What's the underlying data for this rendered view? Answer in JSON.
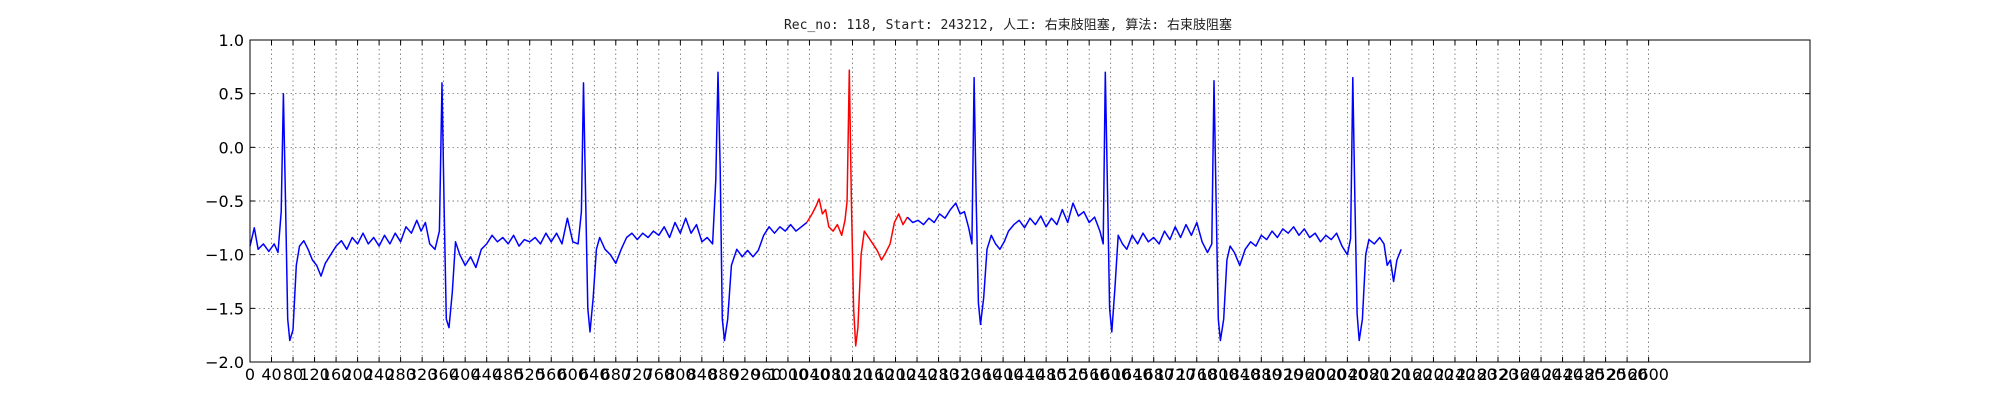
{
  "chart_data": {
    "type": "line",
    "title": "Rec_no: 118, Start: 243212, 人工: 右束肢阻塞, 算法: 右束肢阻塞",
    "xlabel": "",
    "ylabel": "",
    "xlim": [
      0,
      2900
    ],
    "ylim": [
      -2.0,
      1.0
    ],
    "grid": true,
    "y_ticks": [
      1.0,
      0.5,
      0.0,
      -0.5,
      -1.0,
      -1.5,
      -2.0
    ],
    "y_tick_labels": [
      "1.0",
      "0.5",
      "0.0",
      "−0.5",
      "−1.0",
      "−1.5",
      "−2.0"
    ],
    "x_ticks": [
      0,
      40,
      80,
      120,
      160,
      200,
      240,
      280,
      320,
      360,
      400,
      440,
      480,
      520,
      560,
      600,
      640,
      680,
      720,
      760,
      800,
      840,
      880,
      920,
      960,
      1000,
      1040,
      1080,
      1120,
      1160,
      1200,
      1240,
      1280,
      1320,
      1360,
      1400,
      1440,
      1480,
      1520,
      1560,
      1600,
      1640,
      1680,
      1720,
      1760,
      1800,
      1840,
      1880,
      1920,
      1960,
      2000,
      2040,
      2080,
      2120,
      2160,
      2200,
      2240,
      2280,
      2320,
      2360,
      2400,
      2440,
      2480,
      2520,
      2560,
      2600
    ],
    "x_tick_labels": [
      "0",
      "40",
      "80",
      "120",
      "160",
      "200",
      "240",
      "280",
      "320",
      "360",
      "400",
      "440",
      "480",
      "520",
      "560",
      "600",
      "640",
      "680",
      "720",
      "760",
      "800",
      "840",
      "880",
      "920",
      "960",
      "1000",
      "1040",
      "1080",
      "1120",
      "1160",
      "1200",
      "1240",
      "1280",
      "1320",
      "1360",
      "1400",
      "1440",
      "1480",
      "1520",
      "1560",
      "1600",
      "1640",
      "1680",
      "1720",
      "1760",
      "1800",
      "1840",
      "1880",
      "1920",
      "1960",
      "2000",
      "2040",
      "2080",
      "2120",
      "2160",
      "2200",
      "2240",
      "2280",
      "2320",
      "2360",
      "2400",
      "2440",
      "2480",
      "2520",
      "2560",
      "2600"
    ],
    "series": [
      {
        "color": "#0000ff",
        "points": [
          [
            0,
            -0.92
          ],
          [
            8,
            -0.75
          ],
          [
            15,
            -0.95
          ],
          [
            25,
            -0.9
          ],
          [
            35,
            -0.97
          ],
          [
            45,
            -0.9
          ],
          [
            52,
            -0.98
          ],
          [
            58,
            -0.6
          ],
          [
            62,
            0.5
          ],
          [
            66,
            -0.5
          ],
          [
            70,
            -1.6
          ],
          [
            74,
            -1.8
          ],
          [
            80,
            -1.7
          ],
          [
            86,
            -1.1
          ],
          [
            92,
            -0.92
          ],
          [
            100,
            -0.87
          ],
          [
            108,
            -0.95
          ],
          [
            116,
            -1.05
          ],
          [
            124,
            -1.1
          ],
          [
            132,
            -1.2
          ],
          [
            140,
            -1.08
          ],
          [
            150,
            -1.0
          ],
          [
            160,
            -0.92
          ],
          [
            170,
            -0.87
          ],
          [
            180,
            -0.95
          ],
          [
            190,
            -0.84
          ],
          [
            200,
            -0.9
          ],
          [
            210,
            -0.8
          ],
          [
            220,
            -0.9
          ],
          [
            230,
            -0.84
          ],
          [
            240,
            -0.92
          ],
          [
            250,
            -0.82
          ],
          [
            260,
            -0.9
          ],
          [
            270,
            -0.8
          ],
          [
            280,
            -0.88
          ],
          [
            290,
            -0.74
          ],
          [
            300,
            -0.8
          ],
          [
            310,
            -0.68
          ],
          [
            318,
            -0.78
          ],
          [
            326,
            -0.7
          ],
          [
            334,
            -0.9
          ],
          [
            344,
            -0.95
          ],
          [
            352,
            -0.78
          ],
          [
            357,
            0.6
          ],
          [
            361,
            -0.6
          ],
          [
            365,
            -1.6
          ],
          [
            370,
            -1.68
          ],
          [
            376,
            -1.35
          ],
          [
            382,
            -0.88
          ],
          [
            390,
            -1.0
          ],
          [
            400,
            -1.1
          ],
          [
            410,
            -1.02
          ],
          [
            420,
            -1.12
          ],
          [
            430,
            -0.95
          ],
          [
            440,
            -0.9
          ],
          [
            450,
            -0.82
          ],
          [
            460,
            -0.88
          ],
          [
            470,
            -0.84
          ],
          [
            480,
            -0.9
          ],
          [
            490,
            -0.82
          ],
          [
            500,
            -0.92
          ],
          [
            510,
            -0.86
          ],
          [
            520,
            -0.88
          ],
          [
            530,
            -0.84
          ],
          [
            540,
            -0.9
          ],
          [
            550,
            -0.8
          ],
          [
            560,
            -0.88
          ],
          [
            570,
            -0.8
          ],
          [
            580,
            -0.9
          ],
          [
            590,
            -0.66
          ],
          [
            600,
            -0.88
          ],
          [
            610,
            -0.9
          ],
          [
            616,
            -0.6
          ],
          [
            620,
            0.6
          ],
          [
            624,
            -0.5
          ],
          [
            628,
            -1.5
          ],
          [
            632,
            -1.72
          ],
          [
            638,
            -1.4
          ],
          [
            644,
            -0.95
          ],
          [
            650,
            -0.84
          ],
          [
            660,
            -0.95
          ],
          [
            670,
            -1.0
          ],
          [
            680,
            -1.08
          ],
          [
            690,
            -0.95
          ],
          [
            700,
            -0.84
          ],
          [
            710,
            -0.8
          ],
          [
            720,
            -0.86
          ],
          [
            730,
            -0.8
          ],
          [
            740,
            -0.84
          ],
          [
            750,
            -0.78
          ],
          [
            760,
            -0.82
          ],
          [
            770,
            -0.74
          ],
          [
            780,
            -0.84
          ],
          [
            790,
            -0.7
          ],
          [
            800,
            -0.8
          ],
          [
            810,
            -0.66
          ],
          [
            820,
            -0.8
          ],
          [
            830,
            -0.72
          ],
          [
            840,
            -0.88
          ],
          [
            850,
            -0.84
          ],
          [
            860,
            -0.9
          ],
          [
            866,
            -0.3
          ],
          [
            870,
            0.7
          ],
          [
            874,
            -0.2
          ],
          [
            878,
            -1.6
          ],
          [
            882,
            -1.8
          ],
          [
            888,
            -1.6
          ],
          [
            895,
            -1.1
          ],
          [
            905,
            -0.95
          ],
          [
            915,
            -1.02
          ],
          [
            925,
            -0.96
          ],
          [
            935,
            -1.02
          ],
          [
            945,
            -0.96
          ],
          [
            955,
            -0.82
          ],
          [
            965,
            -0.74
          ],
          [
            975,
            -0.8
          ],
          [
            985,
            -0.74
          ],
          [
            995,
            -0.78
          ],
          [
            1005,
            -0.72
          ],
          [
            1015,
            -0.78
          ],
          [
            1025,
            -0.74
          ],
          [
            1035,
            -0.7
          ]
        ]
      },
      {
        "color": "#ff0000",
        "points": [
          [
            1035,
            -0.7
          ],
          [
            1045,
            -0.62
          ],
          [
            1052,
            -0.55
          ],
          [
            1058,
            -0.48
          ],
          [
            1064,
            -0.62
          ],
          [
            1070,
            -0.58
          ],
          [
            1076,
            -0.74
          ],
          [
            1084,
            -0.78
          ],
          [
            1092,
            -0.72
          ],
          [
            1100,
            -0.82
          ],
          [
            1106,
            -0.68
          ],
          [
            1110,
            -0.5
          ],
          [
            1114,
            0.72
          ],
          [
            1118,
            -0.5
          ],
          [
            1122,
            -1.5
          ],
          [
            1126,
            -1.85
          ],
          [
            1130,
            -1.68
          ],
          [
            1136,
            -1.0
          ],
          [
            1142,
            -0.78
          ],
          [
            1150,
            -0.84
          ],
          [
            1158,
            -0.9
          ],
          [
            1166,
            -0.96
          ],
          [
            1174,
            -1.05
          ],
          [
            1182,
            -0.98
          ],
          [
            1190,
            -0.9
          ],
          [
            1198,
            -0.7
          ],
          [
            1206,
            -0.62
          ],
          [
            1214,
            -0.72
          ],
          [
            1222,
            -0.65
          ]
        ]
      },
      {
        "color": "#0000ff",
        "points": [
          [
            1222,
            -0.65
          ],
          [
            1232,
            -0.7
          ],
          [
            1242,
            -0.68
          ],
          [
            1252,
            -0.72
          ],
          [
            1262,
            -0.66
          ],
          [
            1272,
            -0.7
          ],
          [
            1282,
            -0.62
          ],
          [
            1292,
            -0.66
          ],
          [
            1302,
            -0.58
          ],
          [
            1312,
            -0.52
          ],
          [
            1320,
            -0.62
          ],
          [
            1328,
            -0.6
          ],
          [
            1336,
            -0.75
          ],
          [
            1342,
            -0.9
          ],
          [
            1346,
            0.65
          ],
          [
            1350,
            -0.5
          ],
          [
            1354,
            -1.45
          ],
          [
            1358,
            -1.65
          ],
          [
            1364,
            -1.4
          ],
          [
            1370,
            -0.95
          ],
          [
            1378,
            -0.82
          ],
          [
            1386,
            -0.9
          ],
          [
            1394,
            -0.95
          ],
          [
            1402,
            -0.88
          ],
          [
            1410,
            -0.78
          ],
          [
            1420,
            -0.72
          ],
          [
            1430,
            -0.68
          ],
          [
            1440,
            -0.75
          ],
          [
            1450,
            -0.66
          ],
          [
            1460,
            -0.72
          ],
          [
            1470,
            -0.64
          ],
          [
            1480,
            -0.74
          ],
          [
            1490,
            -0.66
          ],
          [
            1500,
            -0.72
          ],
          [
            1510,
            -0.58
          ],
          [
            1520,
            -0.7
          ],
          [
            1530,
            -0.52
          ],
          [
            1540,
            -0.64
          ],
          [
            1550,
            -0.6
          ],
          [
            1560,
            -0.7
          ],
          [
            1570,
            -0.65
          ],
          [
            1580,
            -0.78
          ],
          [
            1586,
            -0.9
          ],
          [
            1590,
            0.7
          ],
          [
            1594,
            -0.4
          ],
          [
            1598,
            -1.5
          ],
          [
            1602,
            -1.72
          ],
          [
            1608,
            -1.3
          ],
          [
            1614,
            -0.82
          ],
          [
            1622,
            -0.9
          ],
          [
            1630,
            -0.95
          ],
          [
            1640,
            -0.82
          ],
          [
            1650,
            -0.9
          ],
          [
            1660,
            -0.8
          ],
          [
            1670,
            -0.88
          ],
          [
            1680,
            -0.84
          ],
          [
            1690,
            -0.9
          ],
          [
            1700,
            -0.78
          ],
          [
            1710,
            -0.86
          ],
          [
            1720,
            -0.74
          ],
          [
            1730,
            -0.84
          ],
          [
            1740,
            -0.72
          ],
          [
            1750,
            -0.82
          ],
          [
            1760,
            -0.7
          ],
          [
            1770,
            -0.88
          ],
          [
            1780,
            -0.98
          ],
          [
            1788,
            -0.9
          ],
          [
            1792,
            0.62
          ],
          [
            1796,
            -0.5
          ],
          [
            1800,
            -1.6
          ],
          [
            1804,
            -1.8
          ],
          [
            1810,
            -1.6
          ],
          [
            1816,
            -1.05
          ],
          [
            1822,
            -0.92
          ],
          [
            1830,
            -0.98
          ],
          [
            1840,
            -1.1
          ],
          [
            1850,
            -0.95
          ],
          [
            1860,
            -0.88
          ],
          [
            1870,
            -0.92
          ],
          [
            1880,
            -0.82
          ],
          [
            1890,
            -0.86
          ],
          [
            1900,
            -0.78
          ],
          [
            1910,
            -0.84
          ],
          [
            1920,
            -0.76
          ],
          [
            1930,
            -0.8
          ],
          [
            1940,
            -0.74
          ],
          [
            1950,
            -0.82
          ],
          [
            1960,
            -0.76
          ],
          [
            1970,
            -0.84
          ],
          [
            1980,
            -0.8
          ],
          [
            1990,
            -0.88
          ],
          [
            2000,
            -0.82
          ],
          [
            2010,
            -0.86
          ],
          [
            2020,
            -0.8
          ],
          [
            2030,
            -0.92
          ],
          [
            2040,
            -1.0
          ],
          [
            2046,
            -0.85
          ],
          [
            2050,
            0.65
          ],
          [
            2054,
            -0.5
          ],
          [
            2058,
            -1.55
          ],
          [
            2062,
            -1.8
          ],
          [
            2068,
            -1.6
          ],
          [
            2074,
            -1.0
          ],
          [
            2080,
            -0.86
          ],
          [
            2090,
            -0.9
          ],
          [
            2100,
            -0.84
          ],
          [
            2108,
            -0.9
          ],
          [
            2114,
            -1.1
          ],
          [
            2120,
            -1.05
          ],
          [
            2126,
            -1.25
          ],
          [
            2132,
            -1.05
          ],
          [
            2140,
            -0.95
          ]
        ]
      }
    ]
  }
}
